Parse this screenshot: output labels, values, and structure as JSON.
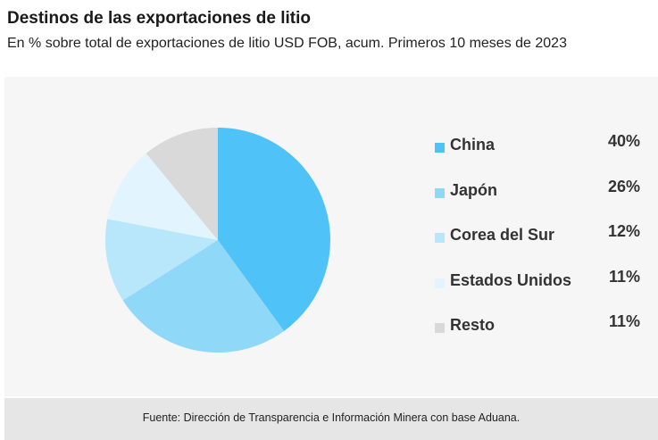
{
  "chart_data": {
    "type": "pie",
    "title": "Destinos de las exportaciones de litio",
    "subtitle": "En % sobre total de exportaciones de litio USD FOB, acum. Primeros 10 meses de  2023",
    "categories": [
      "China",
      "Japón",
      "Corea del Sur",
      "Estados Unidos",
      "Resto"
    ],
    "values": [
      40,
      26,
      12,
      11,
      11
    ],
    "value_labels": [
      "40%",
      "26%",
      "12%",
      "11%",
      "11%"
    ],
    "colors": [
      "#4fc3f7",
      "#90d8f8",
      "#b8e6fa",
      "#e2f4fd",
      "#d9d9d9"
    ],
    "legend_position": "right",
    "start_angle": "top",
    "direction": "clockwise"
  },
  "footer": {
    "source": "Fuente: Dirección de Transparencia e Información Minera con base Aduana."
  }
}
